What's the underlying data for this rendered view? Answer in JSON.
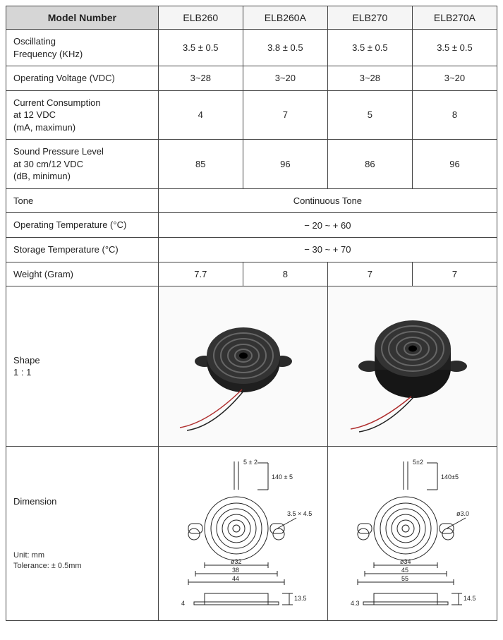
{
  "table": {
    "header": {
      "model_number": "Model Number",
      "cols": [
        "ELB260",
        "ELB260A",
        "ELB270",
        "ELB270A"
      ]
    },
    "rows": [
      {
        "label": "Oscillating\nFrequency (KHz)",
        "vals": [
          "3.5 ± 0.5",
          "3.8 ± 0.5",
          "3.5 ± 0.5",
          "3.5 ± 0.5"
        ]
      },
      {
        "label": "Operating Voltage (VDC)",
        "vals": [
          "3~28",
          "3~20",
          "3~28",
          "3~20"
        ]
      },
      {
        "label": "Current Consumption\nat 12 VDC\n(mA, maximun)",
        "vals": [
          "4",
          "7",
          "5",
          "8"
        ]
      },
      {
        "label": "Sound Pressure Level\nat 30 cm/12 VDC\n(dB, minimun)",
        "vals": [
          "85",
          "96",
          "86",
          "96"
        ]
      },
      {
        "label": "Tone",
        "merged": "Continuous Tone"
      },
      {
        "label": "Operating Temperature (°C)",
        "merged": "− 20 ~ + 60"
      },
      {
        "label": "Storage Temperature (°C)",
        "merged": "− 30 ~ + 70"
      },
      {
        "label": "Weight (Gram)",
        "vals": [
          "7.7",
          "8",
          "7",
          "7"
        ]
      }
    ],
    "shape_label": "Shape\n1 : 1",
    "dimension_label": "Dimension",
    "dimension_unit": "Unit: mm",
    "dimension_tol": "Tolerance: ± 0.5mm"
  },
  "shapes": {
    "buzzer_color": "#2a2a2a",
    "ring_color": "#555",
    "lead_red": "#c04040",
    "lead_black": "#222"
  },
  "dims": {
    "left": {
      "lead_sep": "5 ± 2",
      "lead_len": "140 ± 5",
      "hole": "3.5 × 4.5",
      "dia_inner": "ø32",
      "width_mid": "38",
      "width_outer": "44",
      "height": "13.5",
      "lip": "4"
    },
    "right": {
      "lead_sep": "5±2",
      "lead_len": "140±5",
      "hole": "ø3.0",
      "dia_inner": "ø34",
      "width_mid": "45",
      "width_outer": "55",
      "height": "14.5",
      "lip": "4.3"
    },
    "line_color": "#222",
    "text_color": "#222",
    "font_size": 9
  }
}
